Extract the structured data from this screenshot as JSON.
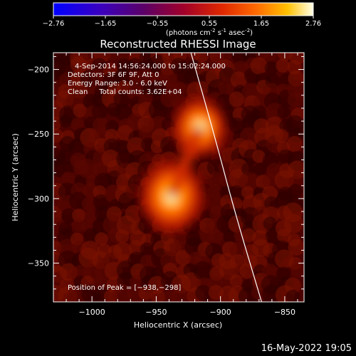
{
  "colorbar": {
    "ticks": [
      "-2.76",
      "-1.65",
      "-0.55",
      "0.55",
      "1.65",
      "2.76"
    ],
    "unit_parts": [
      "(photons cm",
      "-2",
      " s",
      "-1",
      " asec",
      "-2",
      ")"
    ]
  },
  "chart_data": {
    "type": "heatmap",
    "title": "Reconstructed RHESSI Image",
    "xlabel": "Heliocentric X (arcsec)",
    "ylabel": "Heliocentric Y (arcsec)",
    "xlim": [
      -1030,
      -835
    ],
    "ylim": [
      -380,
      -187
    ],
    "xticks": [
      -1000,
      -950,
      -900,
      -850
    ],
    "xtick_labels": [
      "−1000",
      "−950",
      "−900",
      "−850"
    ],
    "yticks": [
      -200,
      -250,
      -300,
      -350
    ],
    "ytick_labels": [
      "−200",
      "−250",
      "−300",
      "−350"
    ],
    "annotations": [
      "4-Sep-2014 14:56:24.000 to 15:02:24.000",
      "Detectors: 3F 6F 9F, Att 0",
      "Energy Range: 3.0 - 6.0 keV",
      "Clean     Total counts: 3.62E+04"
    ],
    "peak_label": "Position of Peak = [−938,−298]",
    "sources": [
      {
        "x": -938,
        "y": -298,
        "relative_intensity": 1.0
      },
      {
        "x": -916,
        "y": -245,
        "relative_intensity": 0.8
      }
    ],
    "limb_curve": [
      {
        "x": -923,
        "y": -187
      },
      {
        "x": -905,
        "y": -250
      },
      {
        "x": -889,
        "y": -310
      },
      {
        "x": -868,
        "y": -380
      }
    ]
  },
  "footer": {
    "timestamp": "16-May-2022 19:05"
  }
}
